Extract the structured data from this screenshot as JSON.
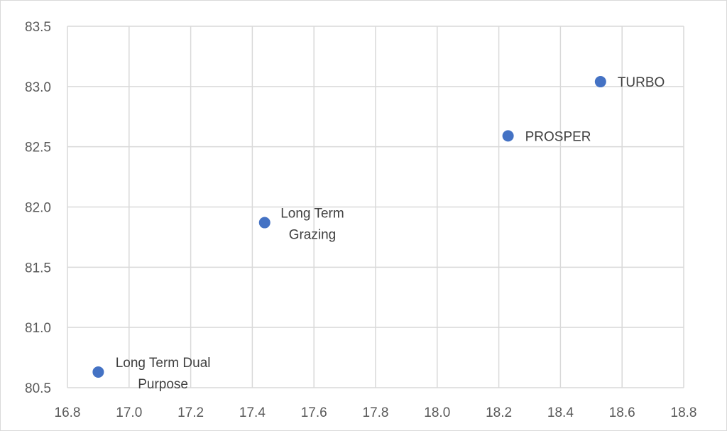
{
  "chart_data": {
    "type": "scatter",
    "title": "",
    "xlabel": "",
    "ylabel": "",
    "xlim": [
      16.8,
      18.8
    ],
    "ylim": [
      80.5,
      83.5
    ],
    "x_ticks": [
      "16.8",
      "17.0",
      "17.2",
      "17.4",
      "17.6",
      "17.8",
      "18.0",
      "18.2",
      "18.4",
      "18.6",
      "18.8"
    ],
    "y_ticks": [
      "80.5",
      "81.0",
      "81.5",
      "82.0",
      "82.5",
      "83.0",
      "83.5"
    ],
    "grid": true,
    "legend": "none",
    "marker_color": "#4472C4",
    "points": [
      {
        "x": 16.9,
        "y": 80.63,
        "label": [
          "Long Term Dual",
          "Purpose"
        ]
      },
      {
        "x": 17.44,
        "y": 81.87,
        "label": [
          "Long Term",
          "Grazing"
        ]
      },
      {
        "x": 18.23,
        "y": 82.59,
        "label": [
          "PROSPER"
        ]
      },
      {
        "x": 18.53,
        "y": 83.04,
        "label": [
          "TURBO"
        ]
      }
    ]
  }
}
